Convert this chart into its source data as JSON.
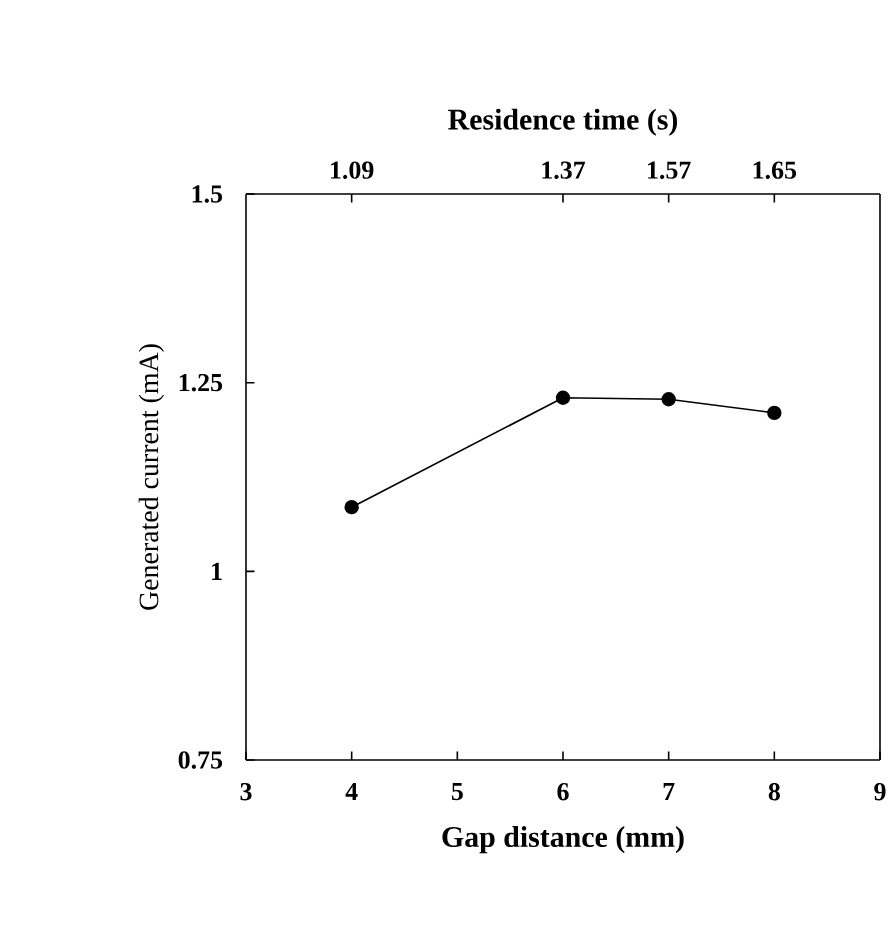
{
  "chart_data": {
    "type": "line",
    "xlabel": "Gap distance (mm)",
    "ylabel": "Generated current (mA)",
    "x2label": "Residence time (s)",
    "x": [
      4,
      6,
      7,
      8
    ],
    "series": [
      {
        "color": "#000000",
        "values": [
          1.085,
          1.23,
          1.228,
          1.21
        ]
      }
    ],
    "xlim": [
      3,
      9
    ],
    "xticks": [
      3,
      4,
      5,
      6,
      7,
      8,
      9
    ],
    "ylim": [
      0.75,
      1.5
    ],
    "yticks": [
      0.75,
      1,
      1.25,
      1.5
    ],
    "annotations": [
      {
        "text": "1.09",
        "x": 4
      },
      {
        "text": "1.37",
        "x": 6
      },
      {
        "text": "1.57",
        "x": 7
      },
      {
        "text": "1.65",
        "x": 8
      }
    ],
    "marker": "circle",
    "line_style": "solid"
  }
}
